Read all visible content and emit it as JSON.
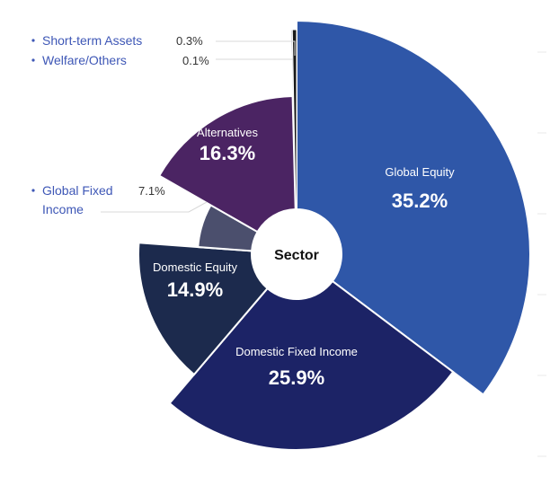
{
  "chart_data": {
    "type": "pie",
    "title": "",
    "center_label": "Sector",
    "slices": [
      {
        "name": "Global Equity",
        "value": 35.2,
        "label": "35.2%",
        "color": "#2f57a8",
        "label_position": "inside"
      },
      {
        "name": "Domestic Fixed Income",
        "value": 25.9,
        "label": "25.9%",
        "color": "#1c2366",
        "label_position": "inside"
      },
      {
        "name": "Domestic Equity",
        "value": 14.9,
        "label": "14.9%",
        "color": "#1c2a4d",
        "label_position": "inside"
      },
      {
        "name": "Global Fixed Income",
        "name_lines": [
          "Global Fixed",
          "Income"
        ],
        "value": 7.1,
        "label": "7.1%",
        "color": "#4b4f6d",
        "label_position": "outside"
      },
      {
        "name": "Alternatives",
        "value": 16.3,
        "label": "16.3%",
        "color": "#4b2463",
        "label_position": "inside"
      },
      {
        "name": "Welfare/Others",
        "value": 0.1,
        "label": "0.1%",
        "color": "#b8b8c8",
        "label_position": "outside"
      },
      {
        "name": "Short-term Assets",
        "value": 0.3,
        "label": "0.3%",
        "color": "#1a1a1a",
        "label_position": "outside"
      }
    ]
  }
}
